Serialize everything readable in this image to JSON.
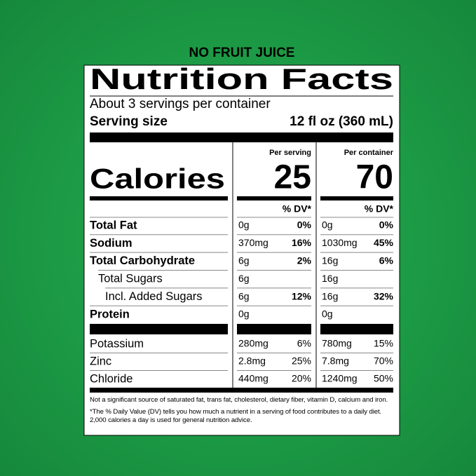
{
  "header": "NO FRUIT JUICE",
  "title": "Nutrition Facts",
  "servings": "About 3 servings per container",
  "serving_size": {
    "label": "Serving size",
    "value": "12 fl oz (360 mL)"
  },
  "columns": [
    "Per serving",
    "Per container"
  ],
  "calories": {
    "label": "Calories",
    "per_serving": 25,
    "per_container": 70
  },
  "dv_header": "% DV*",
  "rows": [
    {
      "name": "Total Fat",
      "serving": [
        "0g",
        "0%"
      ],
      "container": [
        "0g",
        "0%"
      ]
    },
    {
      "name": "Sodium",
      "serving": [
        "370mg",
        "16%"
      ],
      "container": [
        "1030mg",
        "45%"
      ]
    },
    {
      "name": "Total Carbohydrate",
      "serving": [
        "6g",
        "2%"
      ],
      "container": [
        "16g",
        "6%"
      ]
    },
    {
      "name": "Total Sugars",
      "serving": [
        "6g",
        null
      ],
      "container": [
        "16g",
        null
      ]
    },
    {
      "name": "Incl. Added Sugars",
      "serving": [
        "6g",
        "12%"
      ],
      "container": [
        "16g",
        "32%"
      ]
    },
    {
      "name": "Protein",
      "serving": [
        "0g",
        null
      ],
      "container": [
        "0g",
        null
      ]
    }
  ],
  "minerals": [
    {
      "name": "Potassium",
      "serving": [
        "280mg",
        "6%"
      ],
      "container": [
        "780mg",
        "15%"
      ]
    },
    {
      "name": "Zinc",
      "serving": [
        "2.8mg",
        "25%"
      ],
      "container": [
        "7.8mg",
        "70%"
      ]
    },
    {
      "name": "Chloride",
      "serving": [
        "440mg",
        "20%"
      ],
      "container": [
        "1240mg",
        "50%"
      ]
    }
  ],
  "footnotes": [
    "Not a significant source of saturated fat, trans fat, cholesterol, dietary fiber, vitamin D, calcium and iron.",
    "*The % Daily Value (DV) tells you how much a nutrient in a serving of food contributes to a daily diet. 2,000 calories a day is used for general nutrition advice."
  ]
}
